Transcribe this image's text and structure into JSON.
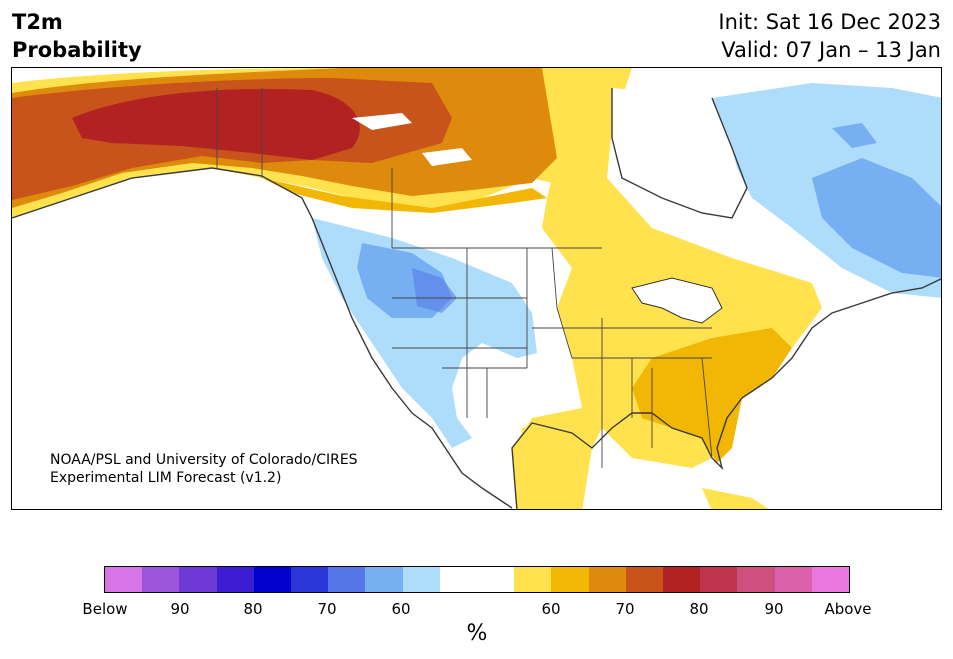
{
  "title": {
    "line1": "T2m",
    "line2": "Probability"
  },
  "init_label": "Init: Sat 16 Dec 2023",
  "valid_label": "Valid: 07 Jan – 13 Jan",
  "credit": {
    "line1": "NOAA/PSL and University of Colorado/CIRES",
    "line2": "Experimental LIM Forecast (v1.2)"
  },
  "colors": {
    "below": [
      "#d674e8",
      "#9e55de",
      "#6e38d6",
      "#3d1dd4",
      "#0000cf",
      "#2936d8",
      "#5476e6",
      "#77b0f2",
      "#aedcfb"
    ],
    "neutral": "#ffffff",
    "above": [
      "#ffe24d",
      "#f2b705",
      "#de8a0c",
      "#c8531b",
      "#b22222",
      "#bf334e",
      "#cf4f7e",
      "#dc61ad",
      "#e977dd"
    ]
  },
  "colorbar": {
    "ticks": [
      "Below",
      "90",
      "80",
      "70",
      "60",
      "60",
      "70",
      "80",
      "90",
      "Above"
    ],
    "unit": "%"
  }
}
